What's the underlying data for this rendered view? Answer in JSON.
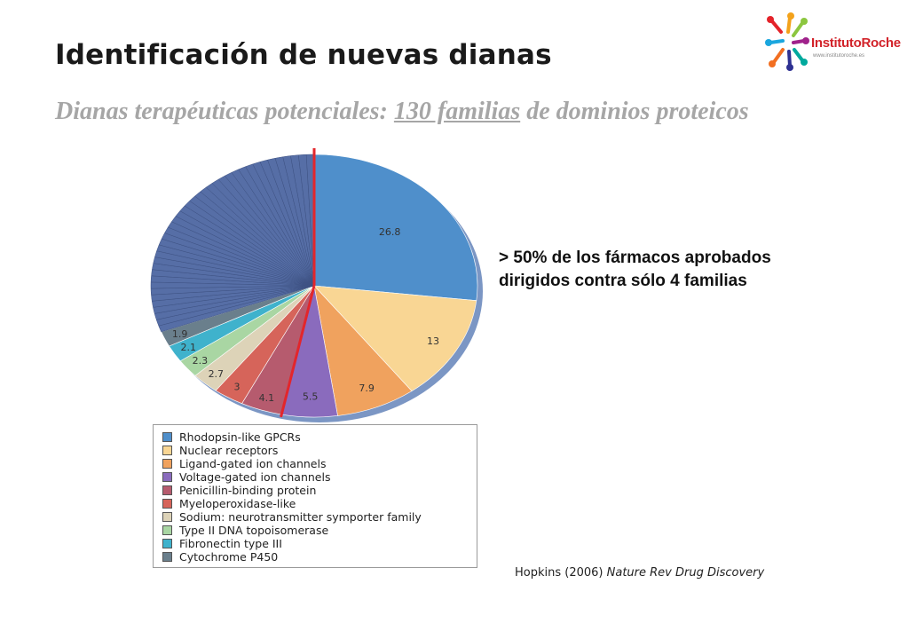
{
  "header": {
    "title": "Identificación de nuevas dianas",
    "subtitle_pre": "Dianas terapéuticas potenciales: ",
    "subtitle_underline": "130 familias",
    "subtitle_post": " de dominios proteicos"
  },
  "logo": {
    "text": "InstitutoRoche",
    "url_text": "www.institutoroche.es"
  },
  "annotation": {
    "line1": "> 50% de los fármacos aprobados",
    "line2": "dirigidos contra sólo 4 familias"
  },
  "citation": {
    "author": "Hopkins (2006) ",
    "journal": "Nature Rev Drug Discovery"
  },
  "chart_data": {
    "type": "pie",
    "title": "",
    "slices": [
      {
        "label": "Rhodopsin-like GPCRs",
        "value": 26.8,
        "color": "#4f8fcb"
      },
      {
        "label": "Nuclear receptors",
        "value": 13,
        "color": "#f9d694"
      },
      {
        "label": "Ligand-gated ion channels",
        "value": 7.9,
        "color": "#f0a25e"
      },
      {
        "label": "Voltage-gated ion channels",
        "value": 5.5,
        "color": "#8a6bbd"
      },
      {
        "label": "Penicillin-binding protein",
        "value": 4.1,
        "color": "#b65b6e"
      },
      {
        "label": "Myeloperoxidase-like",
        "value": 3,
        "color": "#d6645a"
      },
      {
        "label": "Sodium: neurotransmitter symporter family",
        "value": 2.7,
        "color": "#ddd3b8"
      },
      {
        "label": "Type II DNA topoisomerase",
        "value": 2.3,
        "color": "#a9d6a3"
      },
      {
        "label": "Fibronectin type III",
        "value": 2.1,
        "color": "#3fb2cc"
      },
      {
        "label": "Cytochrome P450",
        "value": 1.9,
        "color": "#6a7f8c"
      }
    ],
    "slice_labels": [
      "26.8",
      "13",
      "7.9",
      "5.5",
      "4.1",
      "3",
      "2.7",
      "2.3",
      "2.1",
      "1.9"
    ],
    "other_color": "#566ea6",
    "legend_position": "bottom",
    "divider_color": "#e3262b"
  }
}
